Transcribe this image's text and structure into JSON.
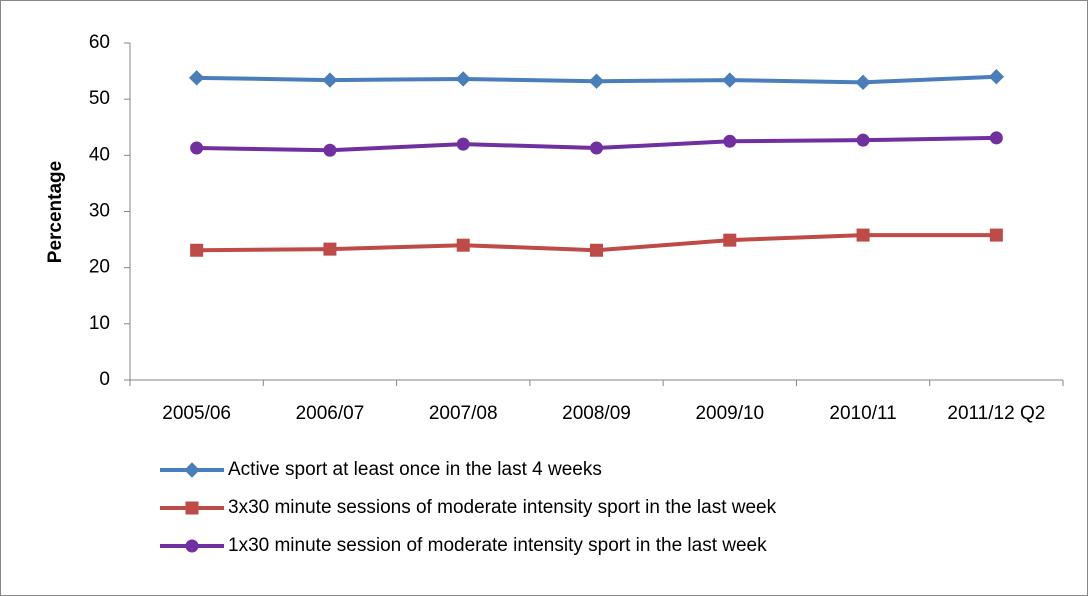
{
  "chart_data": {
    "type": "line",
    "y_label": "Percentage",
    "categories": [
      "2005/06",
      "2006/07",
      "2007/08",
      "2008/09",
      "2009/10",
      "2010/11",
      "2011/12 Q2"
    ],
    "series": [
      {
        "name": "Active sport at least once in the last 4 weeks",
        "color": "#4a7ebb",
        "marker": "diamond",
        "values": [
          53.8,
          53.4,
          53.6,
          53.2,
          53.4,
          53.0,
          54.0
        ]
      },
      {
        "name": "3x30 minute sessions of moderate intensity sport in the last week",
        "color": "#be4b48",
        "marker": "square",
        "values": [
          23.1,
          23.3,
          24.0,
          23.1,
          24.9,
          25.8,
          25.8
        ]
      },
      {
        "name": "1x30 minute session of moderate intensity sport in the last week",
        "color": "#7030a0",
        "marker": "circle",
        "values": [
          41.3,
          40.9,
          42.0,
          41.3,
          42.5,
          42.7,
          43.1
        ]
      }
    ],
    "ylim": [
      0,
      60
    ],
    "yticks": [
      0,
      10,
      20,
      30,
      40,
      50,
      60
    ],
    "grid": false,
    "legend": "bottom"
  }
}
